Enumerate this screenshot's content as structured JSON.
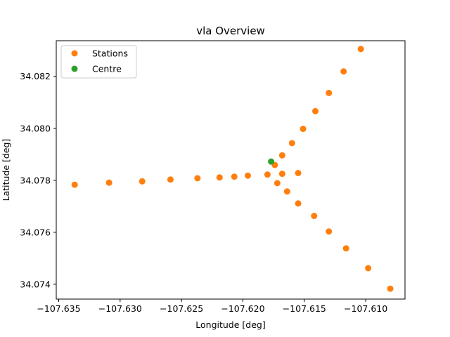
{
  "chart_data": {
    "type": "scatter",
    "title": "vla Overview",
    "xlabel": "Longitude [deg]",
    "ylabel": "Latitude [deg]",
    "xlim": [
      -107.6352,
      -107.6068
    ],
    "ylim": [
      34.07343,
      34.08337
    ],
    "xticks": [
      -107.635,
      -107.63,
      -107.625,
      -107.62,
      -107.615,
      -107.61
    ],
    "xtick_labels": [
      "−107.635",
      "−107.630",
      "−107.625",
      "−107.620",
      "−107.615",
      "−107.610"
    ],
    "yticks": [
      34.074,
      34.076,
      34.078,
      34.08,
      34.082
    ],
    "ytick_labels": [
      "34.074",
      "34.076",
      "34.078",
      "34.080",
      "34.082"
    ],
    "grid": false,
    "legend_position": "top-left",
    "series": [
      {
        "name": "Stations",
        "color": "#ff7f0e",
        "points": [
          [
            -107.6337,
            34.07783
          ],
          [
            -107.6309,
            34.07791
          ],
          [
            -107.6282,
            34.07796
          ],
          [
            -107.6259,
            34.07803
          ],
          [
            -107.6237,
            34.07808
          ],
          [
            -107.6219,
            34.07811
          ],
          [
            -107.6207,
            34.07814
          ],
          [
            -107.6196,
            34.07818
          ],
          [
            -107.618,
            34.07822
          ],
          [
            -107.6174,
            34.07859
          ],
          [
            -107.6168,
            34.07896
          ],
          [
            -107.616,
            34.07943
          ],
          [
            -107.6151,
            34.07998
          ],
          [
            -107.6141,
            34.08066
          ],
          [
            -107.613,
            34.08136
          ],
          [
            -107.6118,
            34.08219
          ],
          [
            -107.6104,
            34.08305
          ],
          [
            -107.6168,
            34.07825
          ],
          [
            -107.6172,
            34.07789
          ],
          [
            -107.6164,
            34.07757
          ],
          [
            -107.6155,
            34.07711
          ],
          [
            -107.6142,
            34.07663
          ],
          [
            -107.613,
            34.07603
          ],
          [
            -107.6116,
            34.07538
          ],
          [
            -107.6098,
            34.07462
          ],
          [
            -107.608,
            34.07383
          ],
          [
            -107.6155,
            34.07828
          ]
        ]
      },
      {
        "name": "Centre",
        "color": "#2ca02c",
        "points": [
          [
            -107.6177,
            34.07872
          ]
        ]
      }
    ]
  }
}
